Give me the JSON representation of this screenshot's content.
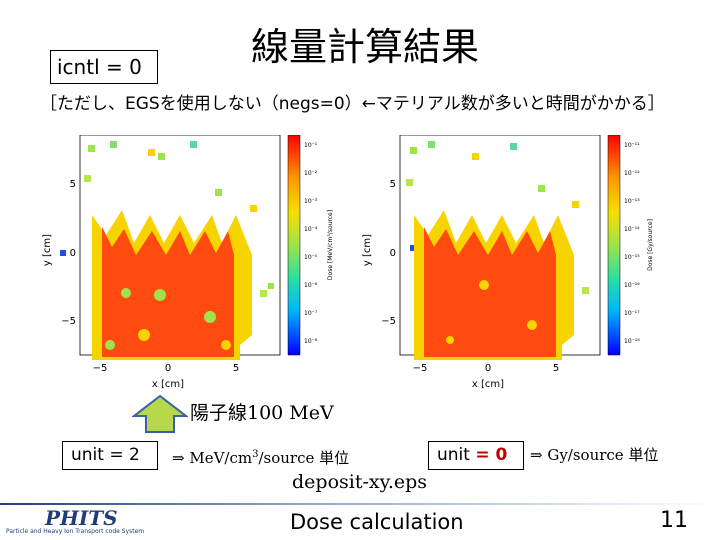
{
  "header": {
    "title": "線量計算結果",
    "param_box": "icntl = 0"
  },
  "note": "［ただし、EGSを使用しない（negs=0）←マテリアル数が多いと時間がかかる］",
  "plots": {
    "left": {
      "xlabel": "x [cm]",
      "ylabel": "y [cm]",
      "x_ticks": [
        "−5",
        "0",
        "5"
      ],
      "y_ticks": [
        "5",
        "0",
        "−5"
      ],
      "colorbar_label": "Dose [MeV/cm³/source]",
      "colorbar_ticks": [
        "10⁻¹",
        "10⁻²",
        "10⁻³",
        "10⁻⁴",
        "10⁻⁵",
        "10⁻⁶",
        "10⁻⁷",
        "10⁻⁸"
      ]
    },
    "right": {
      "xlabel": "x [cm]",
      "ylabel": "y [cm]",
      "x_ticks": [
        "−5",
        "0",
        "5"
      ],
      "y_ticks": [
        "5",
        "0",
        "−5"
      ],
      "colorbar_label": "Dose [Gy/source]",
      "colorbar_ticks": [
        "10⁻¹¹",
        "10⁻¹²",
        "10⁻¹³",
        "10⁻¹⁴",
        "10⁻¹⁵",
        "10⁻¹⁶",
        "10⁻¹⁷",
        "10⁻¹⁸"
      ]
    }
  },
  "beam": {
    "label": "陽子線100 MeV"
  },
  "units": {
    "left_box": "unit = 2",
    "left_desc_pre": "⇒ MeV/cm",
    "left_desc_sup": "3",
    "left_desc_post": "/source 単位",
    "right_box_pre": "unit ",
    "right_box_value": "= 0",
    "right_desc": "⇒ Gy/source 単位"
  },
  "output_file": "deposit-xy.eps",
  "footer": {
    "logo": "PHITS",
    "logo_sub": "Particle and Heavy Ion Transport code System",
    "title": "Dose calculation",
    "page": "11"
  },
  "colors": {
    "high_dose": "#ff4a10",
    "mid_dose": "#f7d400",
    "low_dose": "#9ee34a",
    "arrow_fill": "#b6d84a",
    "arrow_stroke": "#3a5fb0",
    "footer_blue": "#1f3d7a"
  }
}
